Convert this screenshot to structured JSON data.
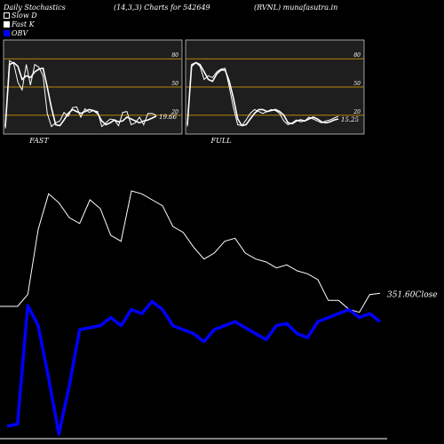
{
  "header": {
    "title": "Daily Stochastics",
    "params": "(14,3,3) Charts for 542649",
    "symbol": "(RVNL) munafasutra.in"
  },
  "legend": {
    "slow_d": "Slow  D",
    "fast_k": "Fast K",
    "obv": "OBV"
  },
  "colors": {
    "background": "#000000",
    "panel": "#1e1e1e",
    "line": "#ffffff",
    "level": "#b8860b",
    "obv": "#0000ff"
  },
  "chart_data": [
    {
      "type": "line",
      "name": "stochastics-fast",
      "caption": "FAST",
      "ylim": [
        0,
        100
      ],
      "levels": [
        20,
        50,
        80
      ],
      "level_labels": [
        "20",
        "50",
        "80"
      ],
      "last_value_label": "19.66",
      "series": [
        {
          "name": "Slow  D",
          "values": [
            8,
            74,
            76,
            72,
            58,
            62,
            60,
            66,
            69,
            70,
            50,
            28,
            10,
            9,
            15,
            22,
            26,
            24,
            22,
            24,
            26,
            25,
            22,
            14,
            10,
            12,
            15,
            13,
            14,
            18,
            16,
            14,
            12,
            14,
            15,
            17,
            19
          ]
        },
        {
          "name": "Fast K",
          "values": [
            6,
            78,
            75,
            55,
            47,
            74,
            52,
            74,
            71,
            62,
            22,
            8,
            12,
            14,
            23,
            19,
            28,
            29,
            18,
            27,
            23,
            25,
            24,
            8,
            12,
            16,
            15,
            9,
            23,
            24,
            10,
            12,
            18,
            10,
            22,
            22,
            20
          ]
        }
      ]
    },
    {
      "type": "line",
      "name": "stochastics-full",
      "caption": "FULL",
      "ylim": [
        0,
        100
      ],
      "levels": [
        20,
        50,
        80
      ],
      "level_labels": [
        "20",
        "50",
        "80"
      ],
      "last_value_label": "15.25",
      "series": [
        {
          "name": "Slow  D",
          "values": [
            10,
            72,
            76,
            74,
            66,
            58,
            56,
            64,
            68,
            68,
            56,
            38,
            16,
            9,
            10,
            16,
            22,
            26,
            26,
            24,
            25,
            26,
            24,
            20,
            12,
            11,
            14,
            15,
            14,
            16,
            18,
            16,
            13,
            12,
            13,
            15,
            16
          ]
        },
        {
          "name": "Fast K",
          "values": [
            8,
            74,
            76,
            72,
            58,
            62,
            60,
            66,
            69,
            70,
            50,
            28,
            10,
            9,
            15,
            22,
            26,
            24,
            22,
            24,
            26,
            25,
            22,
            14,
            10,
            12,
            15,
            13,
            14,
            18,
            16,
            14,
            12,
            14,
            15,
            17,
            19
          ]
        }
      ]
    },
    {
      "type": "line",
      "name": "price-and-obv",
      "close_label": "351.60",
      "close_suffix": "Close",
      "series": [
        {
          "name": "Close",
          "values": [
            330,
            330,
            350,
            460,
            520,
            505,
            480,
            470,
            510,
            495,
            450,
            440,
            525,
            520,
            510,
            500,
            465,
            455,
            430,
            410,
            420,
            440,
            445,
            420,
            410,
            405,
            395,
            400,
            390,
            385,
            375,
            340,
            340,
            325,
            320,
            350,
            352
          ]
        },
        {
          "name": "OBV",
          "values": [
            -160,
            -155,
            140,
            90,
            -40,
            -180,
            -60,
            80,
            85,
            90,
            110,
            90,
            130,
            120,
            150,
            130,
            90,
            80,
            70,
            50,
            80,
            90,
            100,
            85,
            70,
            55,
            90,
            95,
            70,
            60,
            100,
            110,
            120,
            130,
            110,
            120,
            100
          ]
        }
      ]
    }
  ]
}
